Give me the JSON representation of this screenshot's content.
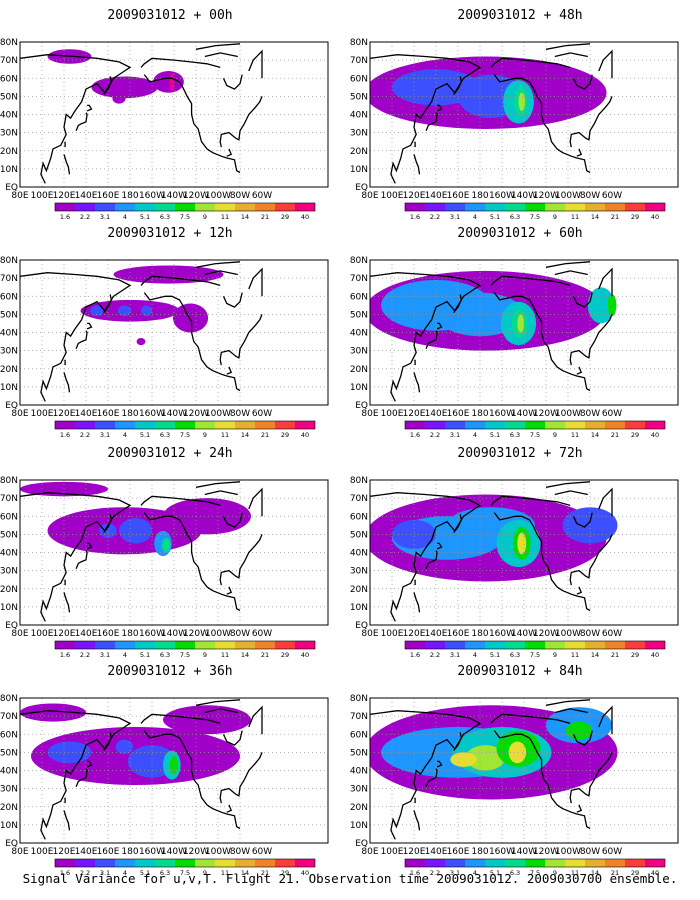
{
  "figure": {
    "caption": "Signal Variance for u,v,T. Flight 21. Observation time 2009031012. 2009030700 ensemble."
  },
  "axes": {
    "lat_labels": [
      "80N",
      "70N",
      "60N",
      "50N",
      "40N",
      "30N",
      "20N",
      "10N",
      "EQ"
    ],
    "lon_labels": [
      "80E",
      "100E",
      "120E",
      "140E",
      "160E",
      "180",
      "160W",
      "140W",
      "120W",
      "100W",
      "80W",
      "60W"
    ]
  },
  "colorbar": {
    "labels": [
      "1.6",
      "2.2",
      "3.1",
      "4",
      "5.1",
      "6.3",
      "7.5",
      "9",
      "11",
      "14",
      "21",
      "29",
      "40"
    ],
    "colors": [
      "#a000c8",
      "#7814ff",
      "#3c50ff",
      "#1e96ff",
      "#00c8c8",
      "#00dc8c",
      "#00dc00",
      "#a0e632",
      "#e6dc32",
      "#e6af2d",
      "#f08228",
      "#fa3c3c",
      "#f00082"
    ]
  },
  "panels": [
    {
      "title": "2009031012 + 00h",
      "lead_hours": 0
    },
    {
      "title": "2009031012 + 48h",
      "lead_hours": 48
    },
    {
      "title": "2009031012 + 12h",
      "lead_hours": 12
    },
    {
      "title": "2009031012 + 60h",
      "lead_hours": 60
    },
    {
      "title": "2009031012 + 24h",
      "lead_hours": 24
    },
    {
      "title": "2009031012 + 72h",
      "lead_hours": 72
    },
    {
      "title": "2009031012 + 36h",
      "lead_hours": 36
    },
    {
      "title": "2009031012 + 84h",
      "lead_hours": 84
    }
  ]
}
